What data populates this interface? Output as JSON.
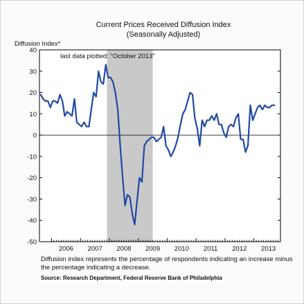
{
  "chart_data": {
    "type": "line",
    "title": "Current Prices Received Diffusion Index",
    "subtitle": "(Seasonally Adjusted)",
    "ylabel": "Diffusion Index*",
    "xlabel": "",
    "ylim": [
      -50,
      40
    ],
    "yticks": [
      40,
      30,
      20,
      10,
      0,
      -10,
      -20,
      -30,
      -40,
      -50
    ],
    "xlim": [
      2005.583,
      2013.917
    ],
    "xticks": [
      "2006",
      "2007",
      "2008",
      "2009",
      "2010",
      "2011",
      "2012",
      "2013"
    ],
    "grid": false,
    "zero_line": true,
    "shaded_region": {
      "start": 2007.917,
      "end": 2009.5
    },
    "annotation": "last data plotted: \"October 2013\"",
    "line_color": "#1f48a5",
    "shade_color": "#c9c9c9",
    "series": [
      {
        "name": "",
        "x": [
          2005.625,
          2005.708,
          2005.792,
          2005.875,
          2005.958,
          2006.042,
          2006.125,
          2006.208,
          2006.292,
          2006.375,
          2006.458,
          2006.542,
          2006.625,
          2006.708,
          2006.792,
          2006.875,
          2006.958,
          2007.042,
          2007.125,
          2007.208,
          2007.292,
          2007.375,
          2007.458,
          2007.542,
          2007.625,
          2007.708,
          2007.792,
          2007.875,
          2007.958,
          2008.042,
          2008.125,
          2008.208,
          2008.292,
          2008.375,
          2008.458,
          2008.542,
          2008.625,
          2008.708,
          2008.792,
          2008.875,
          2008.958,
          2009.042,
          2009.125,
          2009.208,
          2009.292,
          2009.375,
          2009.458,
          2009.542,
          2009.625,
          2009.708,
          2009.792,
          2009.875,
          2009.958,
          2010.042,
          2010.125,
          2010.208,
          2010.292,
          2010.375,
          2010.458,
          2010.542,
          2010.625,
          2010.708,
          2010.792,
          2010.875,
          2010.958,
          2011.042,
          2011.125,
          2011.208,
          2011.292,
          2011.375,
          2011.458,
          2011.542,
          2011.625,
          2011.708,
          2011.792,
          2011.875,
          2011.958,
          2012.042,
          2012.125,
          2012.208,
          2012.292,
          2012.375,
          2012.458,
          2012.542,
          2012.625,
          2012.708,
          2012.792,
          2012.875,
          2012.958,
          2013.042,
          2013.125,
          2013.208,
          2013.292,
          2013.375,
          2013.458,
          2013.542,
          2013.625,
          2013.708
        ],
        "values": [
          19,
          17,
          16,
          16,
          13,
          16,
          16,
          15,
          19,
          16,
          9,
          11,
          10,
          9,
          17,
          6,
          5,
          4,
          6,
          4,
          4,
          12,
          20,
          18,
          30,
          25,
          24,
          33,
          27,
          27,
          25,
          20,
          12,
          -5,
          -20,
          -33,
          -28,
          -29,
          -37,
          -42,
          -31,
          -20,
          -22,
          -5,
          -3,
          -2,
          -1,
          -1,
          -3,
          -2,
          -1,
          4,
          -5,
          -7,
          -10,
          -8,
          -5,
          -1,
          5,
          10,
          12,
          16,
          20,
          19,
          8,
          3,
          -5,
          7,
          4,
          7,
          7,
          9,
          7,
          10,
          5,
          5,
          1,
          -1,
          4,
          5,
          4,
          8,
          10,
          -2,
          -2,
          -8,
          -5,
          14,
          7,
          10,
          13,
          14,
          12,
          14,
          13,
          13,
          14,
          14
        ]
      }
    ]
  },
  "footnote_lines": [
    "Diffusion index represents the percentage of respondents indicating an increase minus",
    "the percentage indicating a decrease."
  ],
  "source": "Source: Research Department, Federal Reserve Bank of Philadelphia"
}
